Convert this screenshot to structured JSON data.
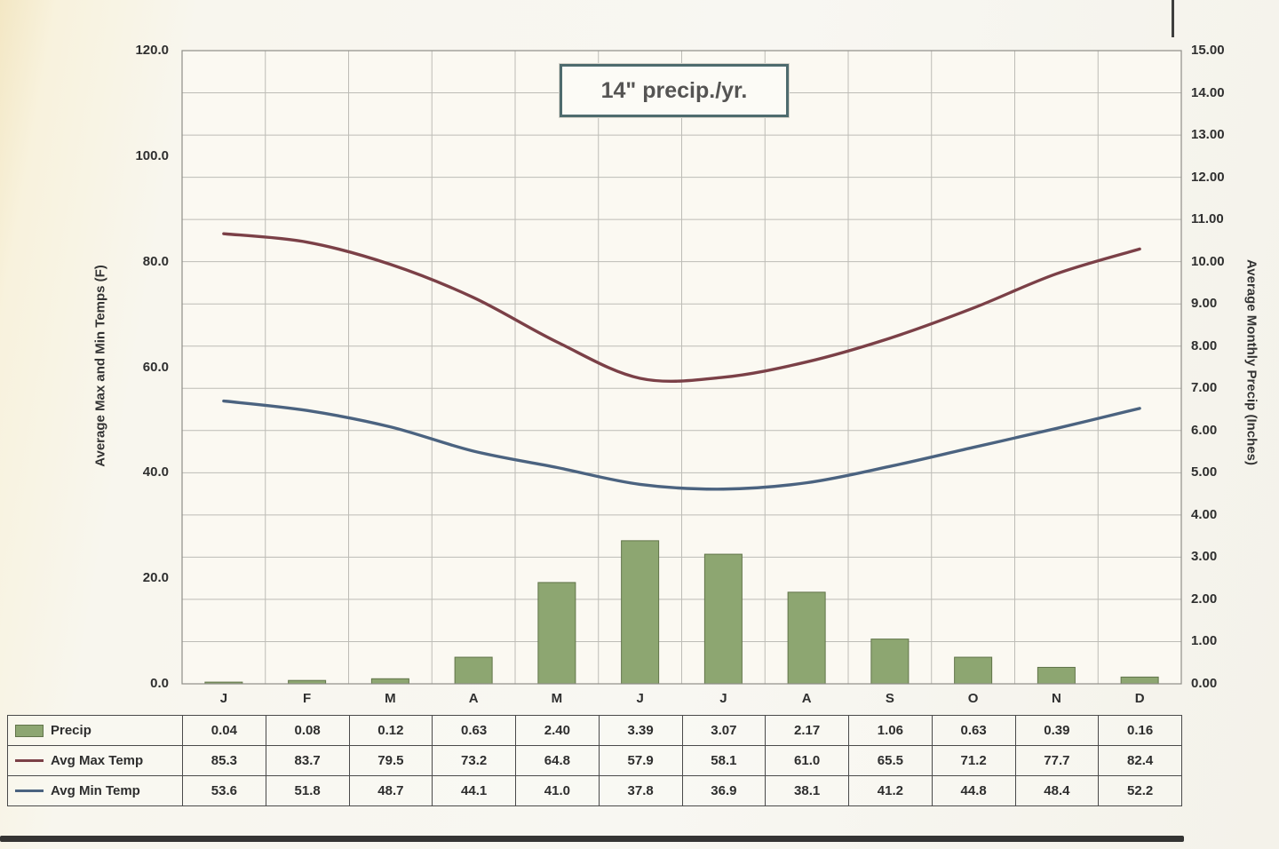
{
  "chart_data": {
    "type": "combo",
    "title": "14\" precip./yr.",
    "categories": [
      "J",
      "F",
      "M",
      "A",
      "M",
      "J",
      "J",
      "A",
      "S",
      "O",
      "N",
      "D"
    ],
    "bar_series": {
      "name": "Precip",
      "values": [
        0.04,
        0.08,
        0.12,
        0.63,
        2.4,
        3.39,
        3.07,
        2.17,
        1.06,
        0.63,
        0.39,
        0.16
      ],
      "color": "#8da671",
      "border_color": "#61744a",
      "axis": "right"
    },
    "line_series": [
      {
        "name": "Avg Max Temp",
        "values": [
          85.3,
          83.7,
          79.5,
          73.2,
          64.8,
          57.9,
          58.1,
          61.0,
          65.5,
          71.2,
          77.7,
          82.4
        ],
        "color": "#7b4047",
        "axis": "left"
      },
      {
        "name": "Avg Min Temp",
        "values": [
          53.6,
          51.8,
          48.7,
          44.1,
          41.0,
          37.8,
          36.9,
          38.1,
          41.2,
          44.8,
          48.4,
          52.2
        ],
        "color": "#4b6380",
        "axis": "left"
      }
    ],
    "left_axis": {
      "label": "Average Max and Min Temps (F)",
      "min": 0,
      "max": 120,
      "step": 20,
      "decimals": 1
    },
    "right_axis": {
      "label": "Average Monthly Precip (Inches)",
      "min": 0,
      "max": 15,
      "step": 1,
      "decimals": 2
    },
    "grid": true,
    "legend_position": "table-left",
    "colors": {
      "gridline": "#bdbcb6",
      "plot_border": "#8f8e88",
      "table_border": "#4a4a4a",
      "title_border": "#4e6b6e"
    }
  }
}
